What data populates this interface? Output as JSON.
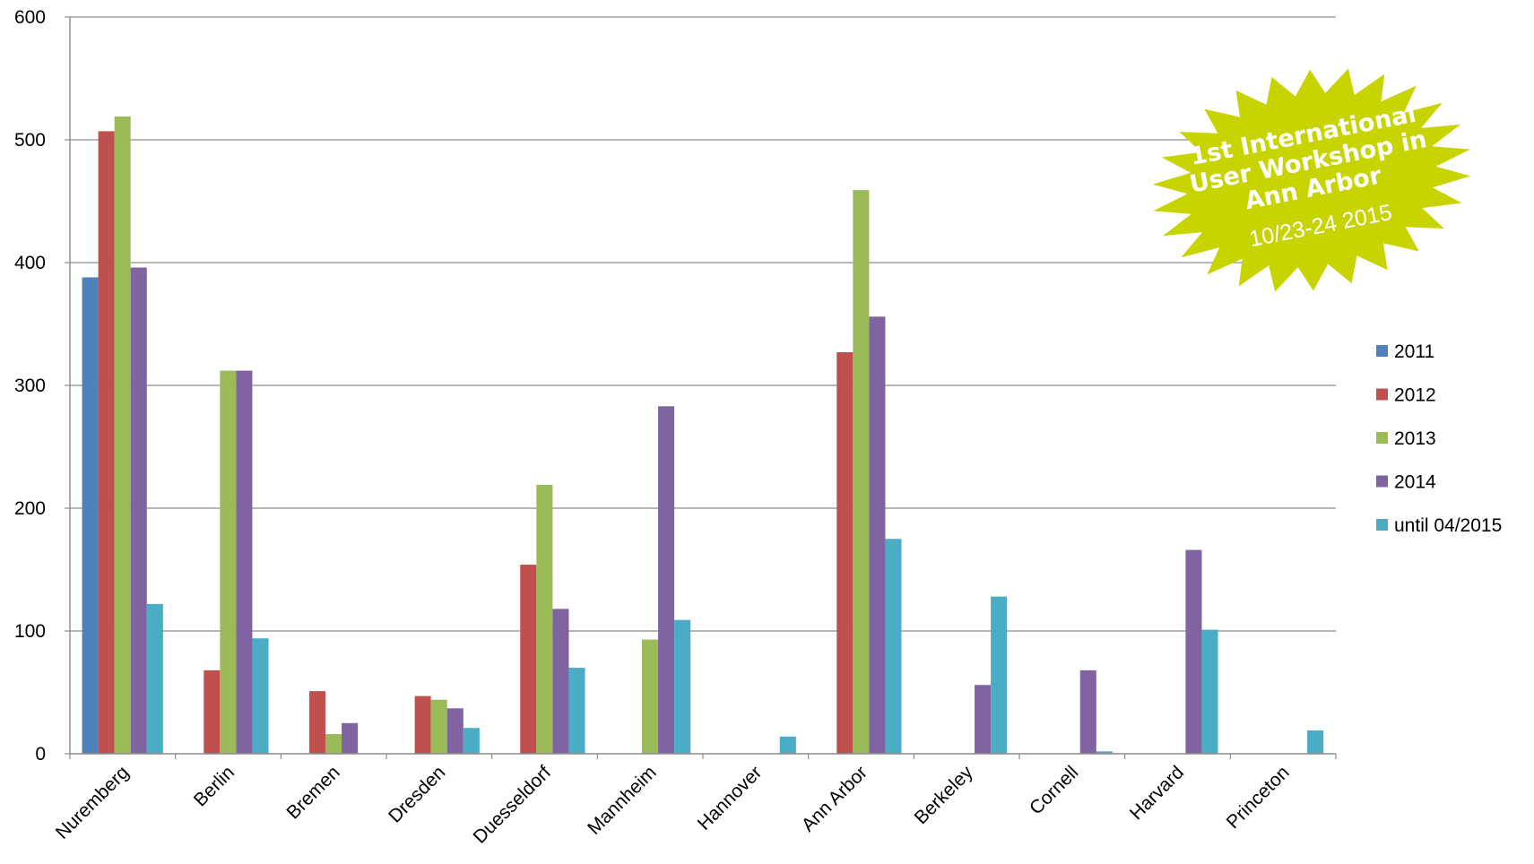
{
  "chart_data": {
    "type": "bar",
    "categories": [
      "Nuremberg",
      "Berlin",
      "Bremen",
      "Dresden",
      "Duesseldorf",
      "Mannheim",
      "Hannover",
      "Ann Arbor",
      "Berkeley",
      "Cornell",
      "Harvard",
      "Princeton"
    ],
    "series": [
      {
        "name": "2011",
        "color": "#4F81BD",
        "values": [
          388,
          0,
          0,
          0,
          0,
          0,
          0,
          0,
          0,
          0,
          0,
          0
        ]
      },
      {
        "name": "2012",
        "color": "#C0504D",
        "values": [
          507,
          68,
          51,
          47,
          154,
          0,
          0,
          327,
          0,
          0,
          0,
          0
        ]
      },
      {
        "name": "2013",
        "color": "#9BBB59",
        "values": [
          519,
          312,
          16,
          44,
          219,
          93,
          0,
          459,
          0,
          0,
          0,
          0
        ]
      },
      {
        "name": "2014",
        "color": "#8064A2",
        "values": [
          396,
          312,
          25,
          37,
          118,
          283,
          0,
          356,
          56,
          68,
          166,
          0
        ]
      },
      {
        "name": "until 04/2015",
        "color": "#4BACC6",
        "values": [
          122,
          94,
          0,
          21,
          70,
          109,
          14,
          175,
          128,
          2,
          101,
          19
        ]
      }
    ],
    "y_ticks": [
      "0",
      "100",
      "200",
      "300",
      "400",
      "500",
      "600"
    ],
    "ylim": [
      0,
      600
    ],
    "grid": true,
    "legend_position": "right",
    "annotation": {
      "lines": [
        "1st International",
        "User Workshop in",
        "Ann Arbor"
      ],
      "date": "10/23-24 2015",
      "color": "#C8D400"
    }
  }
}
